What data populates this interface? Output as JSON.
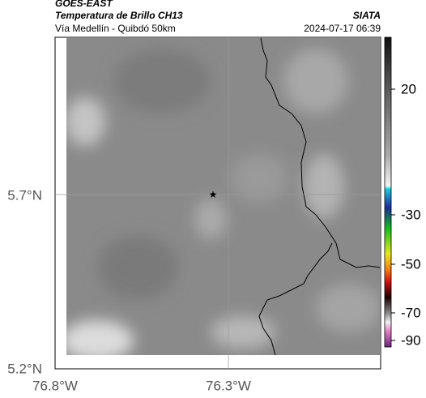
{
  "header": {
    "satellite": "GOES-EAST",
    "product": "Temperatura de Brillo CH13",
    "route": "Vía Medellín - Quibdó 50km",
    "source": "SIATA",
    "timestamp": "2024-07-17 06:39"
  },
  "map": {
    "lat_ticks": [
      "5.7°N",
      "5.2°N"
    ],
    "lon_ticks": [
      "76.8°W",
      "76.3°W"
    ]
  },
  "colorbar": {
    "ticks": [
      20,
      -30,
      -50,
      -70,
      -90
    ]
  }
}
